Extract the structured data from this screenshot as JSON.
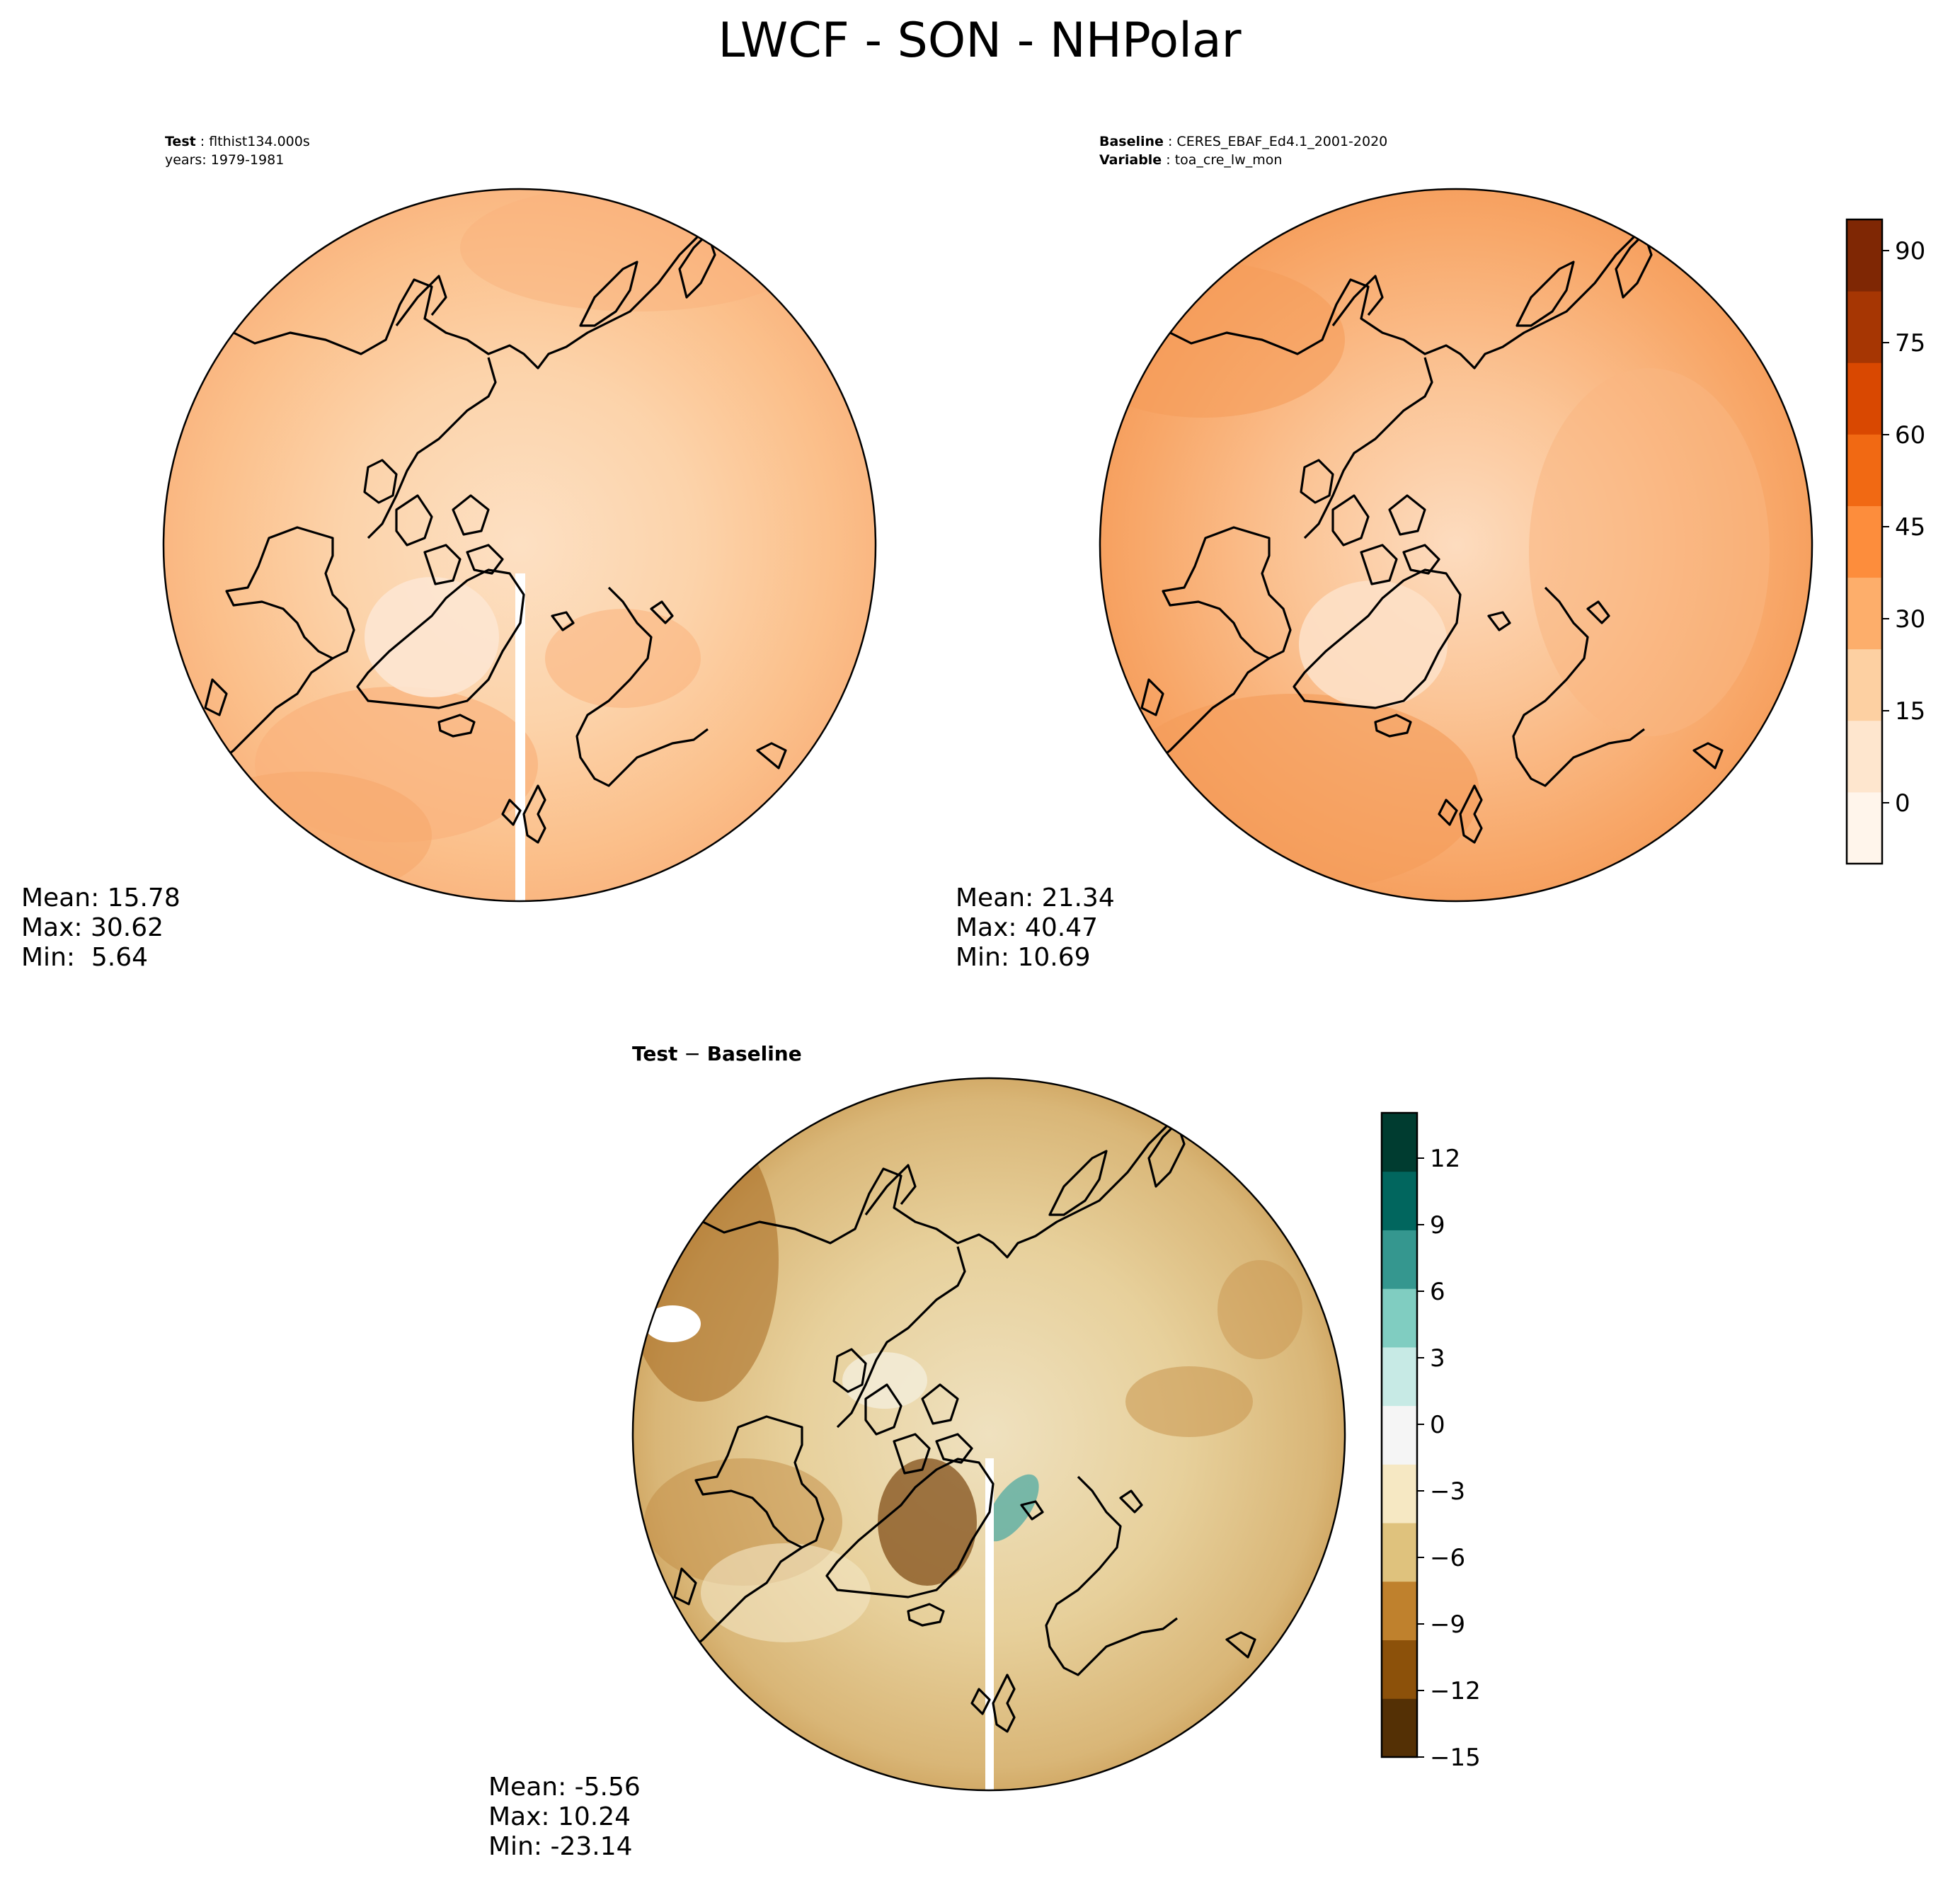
{
  "figure": {
    "title": "LWCF - SON - NHPolar"
  },
  "panels": {
    "test": {
      "header": {
        "line1_key": "Test",
        "line1_value": "flthist134.000s",
        "line2": "years: 1979-1981"
      },
      "stats": {
        "mean": "Mean: 15.78",
        "max": "Max: 30.62",
        "min": "Min:  5.64"
      }
    },
    "baseline": {
      "header": {
        "line1_key": "Baseline",
        "line1_value": "CERES_EBAF_Ed4.1_2001-2020",
        "line2_key": "Variable",
        "line2_value": "toa_cre_lw_mon"
      },
      "stats": {
        "mean": "Mean: 21.34",
        "max": "Max: 40.47",
        "min": "Min: 10.69"
      }
    },
    "diff": {
      "title_a": "Test",
      "title_op": "−",
      "title_b": "Baseline",
      "stats": {
        "mean": "Mean: -5.56",
        "max": "Max: 10.24",
        "min": "Min: -23.14"
      }
    }
  },
  "colorbars": {
    "main": {
      "ticks": [
        "0",
        "15",
        "30",
        "45",
        "60",
        "75",
        "90"
      ],
      "colors": [
        "#fff5eb",
        "#fee6ce",
        "#fdd0a2",
        "#fdae6b",
        "#fd8d3c",
        "#f16913",
        "#d94801",
        "#a63603",
        "#7f2704"
      ]
    },
    "diff": {
      "ticks": [
        "−15",
        "−12",
        "−9",
        "−6",
        "−3",
        "0",
        "3",
        "6",
        "9",
        "12"
      ],
      "colors": [
        "#543005",
        "#8c510a",
        "#bf812d",
        "#dfc27d",
        "#f6e8c3",
        "#f5f5f5",
        "#c7eae5",
        "#80cdc1",
        "#35978f",
        "#01665e",
        "#003c30"
      ]
    }
  },
  "map_colors": {
    "test_fill": "#fbc89a",
    "baseline_fill": "#f8ae74",
    "diff_fill": "#e8d3a2",
    "coast": "#000000"
  }
}
